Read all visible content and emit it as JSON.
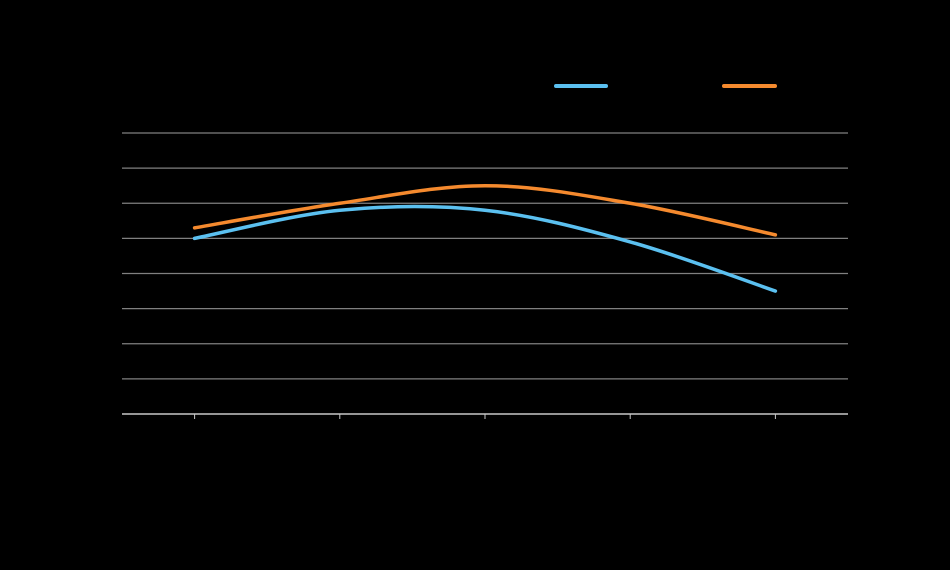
{
  "chart_data": {
    "type": "line",
    "title": "",
    "xlabel": "",
    "ylabel": "",
    "x": [
      1,
      2,
      3,
      4,
      5
    ],
    "xlim": [
      0.5,
      5.5
    ],
    "ylim": [
      0,
      8
    ],
    "grid": true,
    "legend": "top-right",
    "background": "#000000",
    "gridline_color": "#808080",
    "series": [
      {
        "name": "",
        "color": "#5BC0F0",
        "values": [
          5.0,
          5.8,
          5.8,
          4.9,
          3.5
        ]
      },
      {
        "name": "",
        "color": "#F58A2E",
        "values": [
          5.3,
          6.0,
          6.5,
          6.0,
          5.1
        ]
      }
    ]
  }
}
